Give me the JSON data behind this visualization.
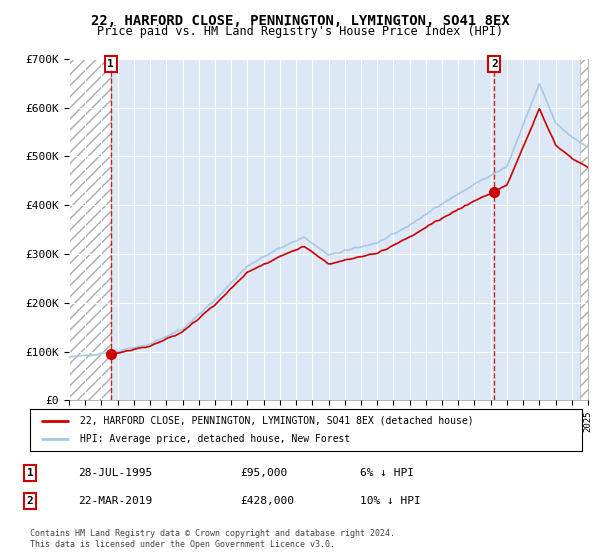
{
  "title": "22, HARFORD CLOSE, PENNINGTON, LYMINGTON, SO41 8EX",
  "subtitle": "Price paid vs. HM Land Registry's House Price Index (HPI)",
  "legend_line1": "22, HARFORD CLOSE, PENNINGTON, LYMINGTON, SO41 8EX (detached house)",
  "legend_line2": "HPI: Average price, detached house, New Forest",
  "sale1_date": "28-JUL-1995",
  "sale1_price": 95000,
  "sale1_pct": "6% ↓ HPI",
  "sale2_date": "22-MAR-2019",
  "sale2_price": 428000,
  "sale2_pct": "10% ↓ HPI",
  "footer": "Contains HM Land Registry data © Crown copyright and database right 2024.\nThis data is licensed under the Open Government Licence v3.0.",
  "ylim": [
    0,
    700000
  ],
  "yticks": [
    0,
    100000,
    200000,
    300000,
    400000,
    500000,
    600000,
    700000
  ],
  "ytick_labels": [
    "£0",
    "£100K",
    "£200K",
    "£300K",
    "£400K",
    "£500K",
    "£600K",
    "£700K"
  ],
  "hpi_color": "#a8c8e8",
  "price_color": "#cc0000",
  "background_color": "#dce8f5",
  "sale1_x": 1995.57,
  "sale2_x": 2019.22,
  "xmin": 1993,
  "xmax": 2025
}
